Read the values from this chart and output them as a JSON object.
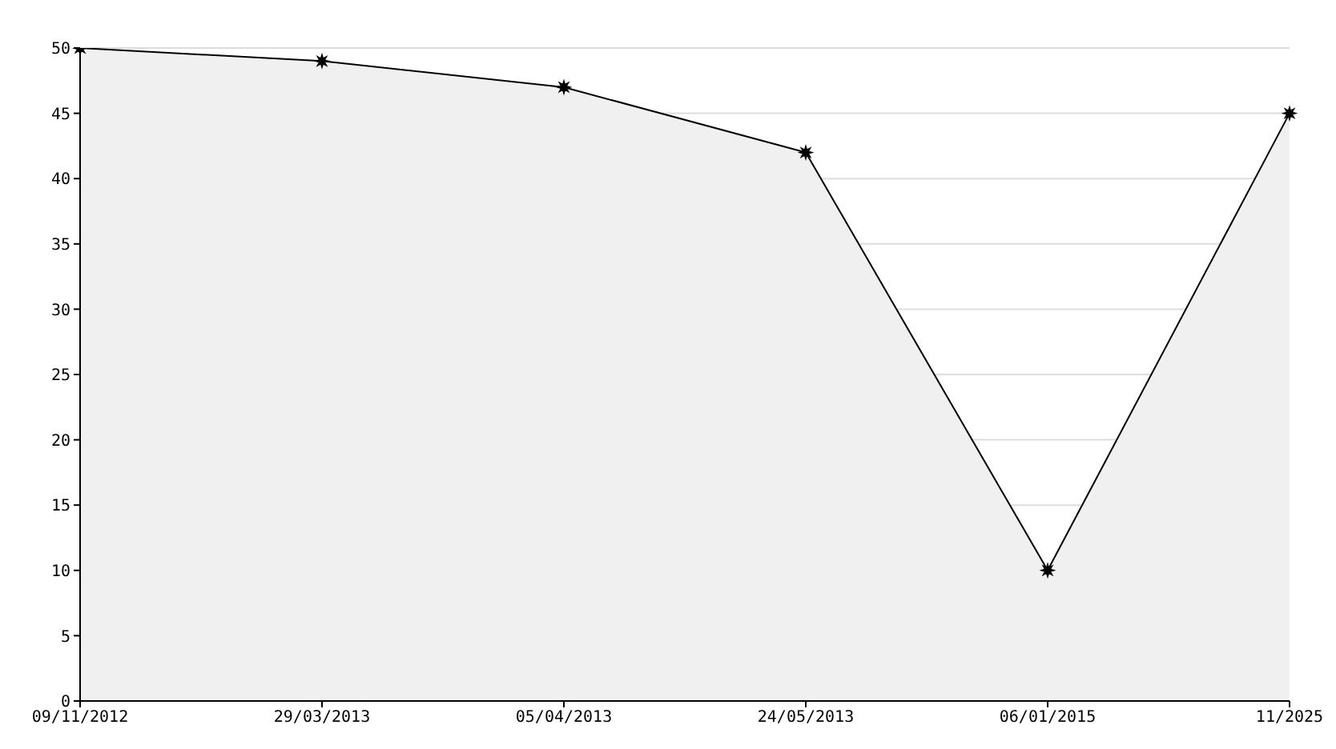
{
  "chart_data": {
    "type": "area",
    "categories": [
      "09/11/2012",
      "29/03/2013",
      "05/04/2013",
      "24/05/2013",
      "06/01/2015",
      "11/2025"
    ],
    "series": [
      {
        "color": "#000000",
        "values": [
          50,
          49,
          47,
          42,
          10,
          45
        ]
      }
    ],
    "ylim": [
      0,
      50
    ],
    "yticks": [
      0,
      5,
      10,
      15,
      20,
      25,
      30,
      35,
      40,
      45,
      50
    ],
    "grid": "y",
    "marker": "star",
    "line_style": "solid"
  }
}
